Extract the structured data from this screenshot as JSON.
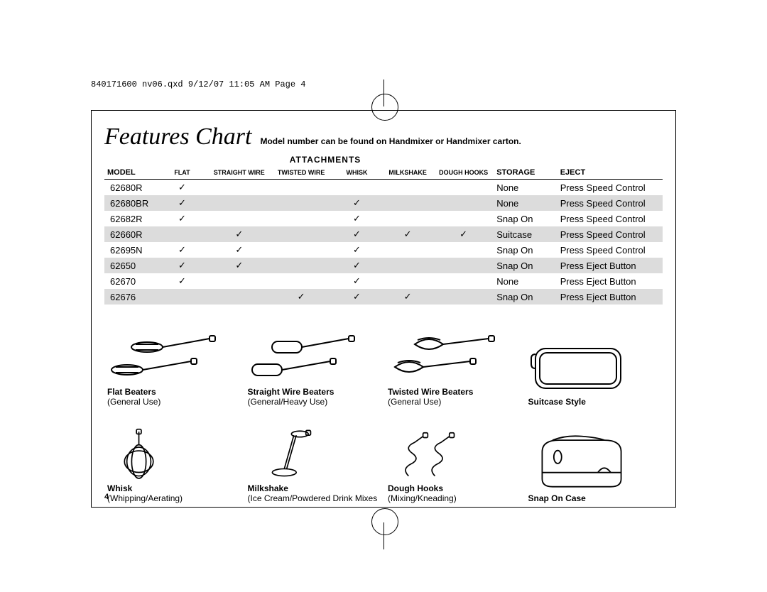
{
  "print_header": "840171600 nv06.qxd  9/12/07  11:05 AM  Page 4",
  "title": "Features Chart",
  "subtitle": "Model number can be found on Handmixer or Handmixer carton.",
  "table": {
    "group_header": "ATTACHMENTS",
    "columns": {
      "model": "MODEL",
      "flat": "FLAT",
      "straight_wire": "STRAIGHT WIRE",
      "twisted_wire": "TWISTED WIRE",
      "whisk": "WHISK",
      "milkshake": "MILKSHAKE",
      "dough_hooks": "DOUGH HOOKS",
      "storage": "STORAGE",
      "eject": "EJECT"
    },
    "rows": [
      {
        "model": "62680R",
        "flat": "✓",
        "straight": "",
        "twisted": "",
        "whisk": "",
        "milkshake": "",
        "dough": "",
        "storage": "None",
        "eject": "Press Speed Control"
      },
      {
        "model": "62680BR",
        "flat": "✓",
        "straight": "",
        "twisted": "",
        "whisk": "✓",
        "milkshake": "",
        "dough": "",
        "storage": "None",
        "eject": "Press Speed Control"
      },
      {
        "model": "62682R",
        "flat": "✓",
        "straight": "",
        "twisted": "",
        "whisk": "✓",
        "milkshake": "",
        "dough": "",
        "storage": "Snap On",
        "eject": "Press Speed Control"
      },
      {
        "model": "62660R",
        "flat": "",
        "straight": "✓",
        "twisted": "",
        "whisk": "✓",
        "milkshake": "✓",
        "dough": "✓",
        "storage": "Suitcase",
        "eject": "Press Speed Control"
      },
      {
        "model": "62695N",
        "flat": "✓",
        "straight": "✓",
        "twisted": "",
        "whisk": "✓",
        "milkshake": "",
        "dough": "",
        "storage": "Snap On",
        "eject": "Press Speed Control"
      },
      {
        "model": "62650",
        "flat": "✓",
        "straight": "✓",
        "twisted": "",
        "whisk": "✓",
        "milkshake": "",
        "dough": "",
        "storage": "Snap On",
        "eject": "Press Eject Button"
      },
      {
        "model": "62670",
        "flat": "✓",
        "straight": "",
        "twisted": "",
        "whisk": "✓",
        "milkshake": "",
        "dough": "",
        "storage": "None",
        "eject": "Press Eject Button"
      },
      {
        "model": "62676",
        "flat": "",
        "straight": "",
        "twisted": "✓",
        "whisk": "✓",
        "milkshake": "✓",
        "dough": "",
        "storage": "Snap On",
        "eject": "Press Eject Button"
      }
    ]
  },
  "illustrations": [
    {
      "name": "flat-beaters",
      "label": "Flat Beaters",
      "sub": "(General Use)"
    },
    {
      "name": "straight-wire",
      "label": "Straight Wire Beaters",
      "sub": "(General/Heavy Use)"
    },
    {
      "name": "twisted-wire",
      "label": "Twisted Wire Beaters",
      "sub": "(General Use)"
    },
    {
      "name": "suitcase",
      "label": "Suitcase Style",
      "sub": ""
    },
    {
      "name": "whisk",
      "label": "Whisk",
      "sub": "(Whipping/Aerating)"
    },
    {
      "name": "milkshake",
      "label": "Milkshake",
      "sub": "(Ice Cream/Powdered Drink Mixes"
    },
    {
      "name": "dough-hooks",
      "label": "Dough Hooks",
      "sub": "(Mixing/Kneading)"
    },
    {
      "name": "snap-on",
      "label": "Snap On Case",
      "sub": ""
    }
  ],
  "page_number": "4",
  "colors": {
    "row_alt": "#dcdcdc",
    "border": "#000000",
    "background": "#ffffff",
    "text": "#000000"
  }
}
